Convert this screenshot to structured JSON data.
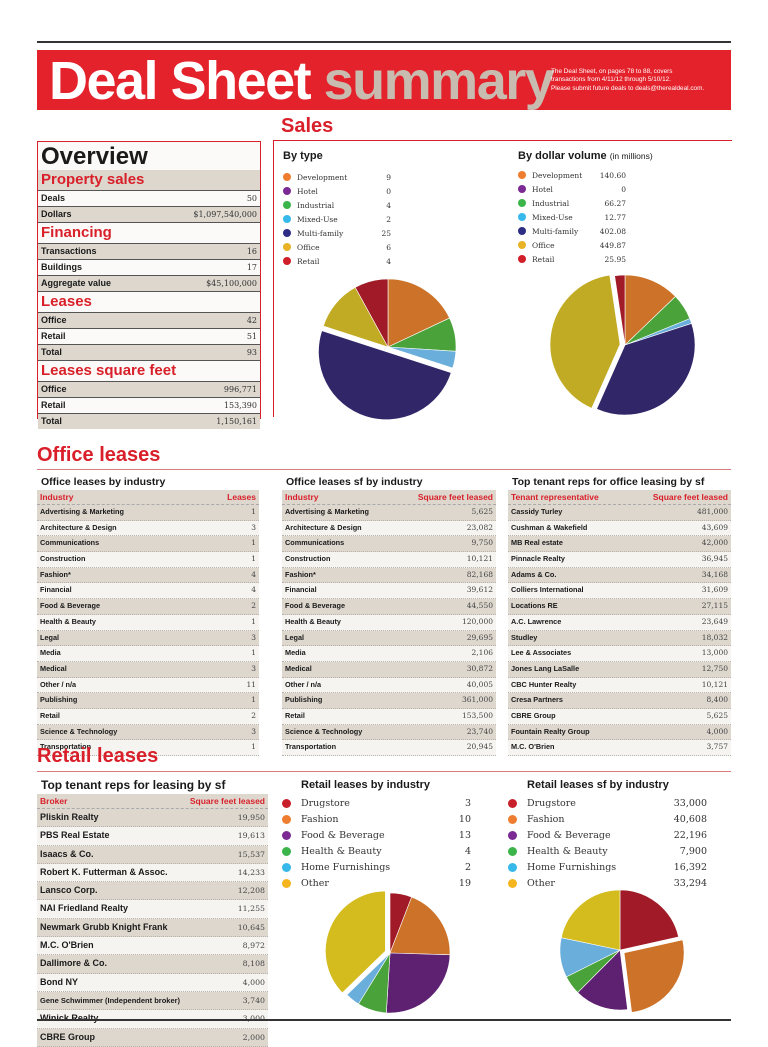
{
  "header": {
    "title_word1": "Deal Sheet",
    "title_word2": "summary",
    "note_line1": "The Deal Sheet, on pages 78 to 88, covers",
    "note_line2": "transactions from 4/11/12 through 5/10/12.",
    "note_line3": "Please submit future deals to deals@therealdeal.com."
  },
  "colors": {
    "brand_red": "#e4222b",
    "heading_red": "#d9202a",
    "summary_gray": "#c8bcb1",
    "row_shade": "#ddd7ce"
  },
  "sections": {
    "sales": "Sales",
    "office_leases": "Office leases",
    "retail_leases": "Retail leases"
  },
  "overview": {
    "title": "Overview",
    "property_sales": {
      "heading": "Property sales",
      "rows": [
        {
          "label": "Deals",
          "value": "50"
        },
        {
          "label": "Dollars",
          "value": "$1,097,540,000"
        }
      ]
    },
    "financing": {
      "heading": "Financing",
      "rows": [
        {
          "label": "Transactions",
          "value": "16"
        },
        {
          "label": "Buildings",
          "value": "17"
        },
        {
          "label": "Aggregate value",
          "value": "$45,100,000"
        }
      ]
    },
    "leases": {
      "heading": "Leases",
      "rows": [
        {
          "label": "Office",
          "value": "42"
        },
        {
          "label": "Retail",
          "value": "51"
        },
        {
          "label": "Total",
          "value": "93"
        }
      ]
    },
    "leases_sf": {
      "heading": "Leases square feet",
      "rows": [
        {
          "label": "Office",
          "value": "996,771"
        },
        {
          "label": "Retail",
          "value": "153,390"
        },
        {
          "label": "Total",
          "value": "1,150,161"
        }
      ]
    }
  },
  "sales_by_type": {
    "title": "By type",
    "items": [
      {
        "name": "Development",
        "value": "9",
        "color": "#ee7d2f",
        "slice": "#cc7329"
      },
      {
        "name": "Hotel",
        "value": "0",
        "color": "#7b2a94",
        "slice": "#5e2070"
      },
      {
        "name": "Industrial",
        "value": "4",
        "color": "#3bb54a",
        "slice": "#4aa33a"
      },
      {
        "name": "Mixed-Use",
        "value": "2",
        "color": "#36b8ea",
        "slice": "#6aaedc"
      },
      {
        "name": "Multi-family",
        "value": "25",
        "color": "#2d2e83",
        "slice": "#302668"
      },
      {
        "name": "Office",
        "value": "6",
        "color": "#e8b325",
        "slice": "#c2ab24"
      },
      {
        "name": "Retail",
        "value": "4",
        "color": "#d11f2a",
        "slice": "#a01a27"
      }
    ]
  },
  "sales_by_dollar": {
    "title": "By dollar volume",
    "title_suffix": "(in millions)",
    "items": [
      {
        "name": "Development",
        "value": "140.60",
        "color": "#ee7d2f",
        "slice": "#cc7329"
      },
      {
        "name": "Hotel",
        "value": "0",
        "color": "#7b2a94",
        "slice": "#5e2070"
      },
      {
        "name": "Industrial",
        "value": "66.27",
        "color": "#3bb54a",
        "slice": "#4aa33a"
      },
      {
        "name": "Mixed-Use",
        "value": "12.77",
        "color": "#36b8ea",
        "slice": "#6aaedc"
      },
      {
        "name": "Multi-family",
        "value": "402.08",
        "color": "#2d2e83",
        "slice": "#302668"
      },
      {
        "name": "Office",
        "value": "449.87",
        "color": "#e8b325",
        "slice": "#c2ab24"
      },
      {
        "name": "Retail",
        "value": "25.95",
        "color": "#d11f2a",
        "slice": "#a01a27"
      }
    ]
  },
  "office_by_industry": {
    "title": "Office leases by industry",
    "col1": "Industry",
    "col2": "Leases",
    "rows": [
      {
        "name": "Advertising & Marketing",
        "value": "1"
      },
      {
        "name": "Architecture & Design",
        "value": "3"
      },
      {
        "name": "Communications",
        "value": "1"
      },
      {
        "name": "Construction",
        "value": "1"
      },
      {
        "name": "Fashion*",
        "value": "4"
      },
      {
        "name": "Financial",
        "value": "4"
      },
      {
        "name": "Food & Beverage",
        "value": "2"
      },
      {
        "name": "Health & Beauty",
        "value": "1"
      },
      {
        "name": "Legal",
        "value": "3"
      },
      {
        "name": "Media",
        "value": "1"
      },
      {
        "name": "Medical",
        "value": "3"
      },
      {
        "name": "Other / n/a",
        "value": "11"
      },
      {
        "name": "Publishing",
        "value": "1"
      },
      {
        "name": "Retail",
        "value": "2"
      },
      {
        "name": "Science & Technology",
        "value": "3"
      },
      {
        "name": "Transportation",
        "value": "1"
      }
    ]
  },
  "office_sf_by_industry": {
    "title": "Office leases sf by industry",
    "col1": "Industry",
    "col2": "Square feet leased",
    "rows": [
      {
        "name": "Advertising & Marketing",
        "value": "5,625"
      },
      {
        "name": "Architecture & Design",
        "value": "23,082"
      },
      {
        "name": "Communications",
        "value": "9,750"
      },
      {
        "name": "Construction",
        "value": "10,121"
      },
      {
        "name": "Fashion*",
        "value": "82,168"
      },
      {
        "name": "Financial",
        "value": "39,612"
      },
      {
        "name": "Food & Beverage",
        "value": "44,550"
      },
      {
        "name": "Health & Beauty",
        "value": "120,000"
      },
      {
        "name": "Legal",
        "value": "29,695"
      },
      {
        "name": "Media",
        "value": "2,106"
      },
      {
        "name": "Medical",
        "value": "30,872"
      },
      {
        "name": "Other / n/a",
        "value": "40,005"
      },
      {
        "name": "Publishing",
        "value": "361,000"
      },
      {
        "name": "Retail",
        "value": "153,500"
      },
      {
        "name": "Science & Technology",
        "value": "23,740"
      },
      {
        "name": "Transportation",
        "value": "20,945"
      }
    ]
  },
  "office_tenant_reps": {
    "title": "Top tenant reps for office leasing by sf",
    "col1": "Tenant representative",
    "col2": "Square feet leased",
    "rows": [
      {
        "name": "Cassidy Turley",
        "value": "481,000"
      },
      {
        "name": "Cushman & Wakefield",
        "value": "43,609"
      },
      {
        "name": "MB Real estate",
        "value": "42,000"
      },
      {
        "name": "Pinnacle Realty",
        "value": "36,945"
      },
      {
        "name": "Adams & Co.",
        "value": "34,168"
      },
      {
        "name": "Colliers International",
        "value": "31,609"
      },
      {
        "name": "Locations RE",
        "value": "27,115"
      },
      {
        "name": "A.C. Lawrence",
        "value": "23,649"
      },
      {
        "name": "Studley",
        "value": "18,032"
      },
      {
        "name": "Lee & Associates",
        "value": "13,000"
      },
      {
        "name": "Jones Lang LaSalle",
        "value": "12,750"
      },
      {
        "name": "CBC Hunter Realty",
        "value": "10,121"
      },
      {
        "name": "Cresa Partners",
        "value": "8,400"
      },
      {
        "name": "CBRE Group",
        "value": "5,625"
      },
      {
        "name": "Fountain Realty Group",
        "value": "4,000"
      },
      {
        "name": "M.C. O'Brien",
        "value": "3,757"
      }
    ]
  },
  "retail_tenant_reps": {
    "title": "Top tenant reps for leasing by sf",
    "col1": "Broker",
    "col2": "Square feet leased",
    "rows": [
      {
        "name": "Pliskin Realty",
        "value": "19,950"
      },
      {
        "name": "PBS Real Estate",
        "value": "19,613"
      },
      {
        "name": "Isaacs & Co.",
        "value": "15,537"
      },
      {
        "name": "Robert K. Futterman & Assoc.",
        "value": "14,233"
      },
      {
        "name": "Lansco Corp.",
        "value": "12,208"
      },
      {
        "name": "NAI Friedland Realty",
        "value": "11,255"
      },
      {
        "name": "Newmark Grubb Knight Frank",
        "value": "10,645"
      },
      {
        "name": "M.C. O'Brien",
        "value": "8,972"
      },
      {
        "name": "Dallimore & Co.",
        "value": "8,108"
      },
      {
        "name": "Bond NY",
        "value": "4,000"
      },
      {
        "name": "Gene Schwimmer (Independent broker)",
        "value": "3,740"
      },
      {
        "name": "Winick Realty",
        "value": "3,000"
      },
      {
        "name": "CBRE Group",
        "value": "2,000"
      }
    ]
  },
  "retail_by_industry": {
    "title": "Retail leases by industry",
    "items": [
      {
        "name": "Drugstore",
        "value": "3",
        "color": "#c8202a",
        "slice": "#a01a27"
      },
      {
        "name": "Fashion",
        "value": "10",
        "color": "#ee7d2f",
        "slice": "#cc7329"
      },
      {
        "name": "Food & Beverage",
        "value": "13",
        "color": "#7b2a94",
        "slice": "#5e2070"
      },
      {
        "name": "Health & Beauty",
        "value": "4",
        "color": "#3bb54a",
        "slice": "#4aa33a"
      },
      {
        "name": "Home Furnishings",
        "value": "2",
        "color": "#36b8ea",
        "slice": "#6aaedc"
      },
      {
        "name": "Other",
        "value": "19",
        "color": "#f4b51f",
        "slice": "#d4bb1e"
      }
    ]
  },
  "retail_sf_by_industry": {
    "title": "Retail leases sf by industry",
    "items": [
      {
        "name": "Drugstore",
        "value": "33,000",
        "color": "#c8202a",
        "slice": "#a01a27"
      },
      {
        "name": "Fashion",
        "value": "40,608",
        "color": "#ee7d2f",
        "slice": "#cc7329"
      },
      {
        "name": "Food & Beverage",
        "value": "22,196",
        "color": "#7b2a94",
        "slice": "#5e2070"
      },
      {
        "name": "Health & Beauty",
        "value": "7,900",
        "color": "#3bb54a",
        "slice": "#4aa33a"
      },
      {
        "name": "Home Furnishings",
        "value": "16,392",
        "color": "#36b8ea",
        "slice": "#6aaedc"
      },
      {
        "name": "Other",
        "value": "33,294",
        "color": "#f4b51f",
        "slice": "#d4bb1e"
      }
    ]
  },
  "chart_data": [
    {
      "type": "pie",
      "title": "By type",
      "categories": [
        "Development",
        "Hotel",
        "Industrial",
        "Mixed-Use",
        "Multi-family",
        "Office",
        "Retail"
      ],
      "values": [
        9,
        0,
        4,
        2,
        25,
        6,
        4
      ],
      "exploded": "Multi-family"
    },
    {
      "type": "pie",
      "title": "By dollar volume (in millions)",
      "categories": [
        "Development",
        "Hotel",
        "Industrial",
        "Mixed-Use",
        "Multi-family",
        "Office",
        "Retail"
      ],
      "values": [
        140.6,
        0,
        66.27,
        12.77,
        402.08,
        449.87,
        25.95
      ],
      "exploded": "Office"
    },
    {
      "type": "pie",
      "title": "Retail leases by industry",
      "categories": [
        "Drugstore",
        "Fashion",
        "Food & Beverage",
        "Health & Beauty",
        "Home Furnishings",
        "Other"
      ],
      "values": [
        3,
        10,
        13,
        4,
        2,
        19
      ],
      "exploded": "Other"
    },
    {
      "type": "pie",
      "title": "Retail leases sf by industry",
      "categories": [
        "Drugstore",
        "Fashion",
        "Food & Beverage",
        "Health & Beauty",
        "Home Furnishings",
        "Other"
      ],
      "values": [
        33000,
        40608,
        22196,
        7900,
        16392,
        33294
      ],
      "exploded": "Fashion"
    }
  ]
}
